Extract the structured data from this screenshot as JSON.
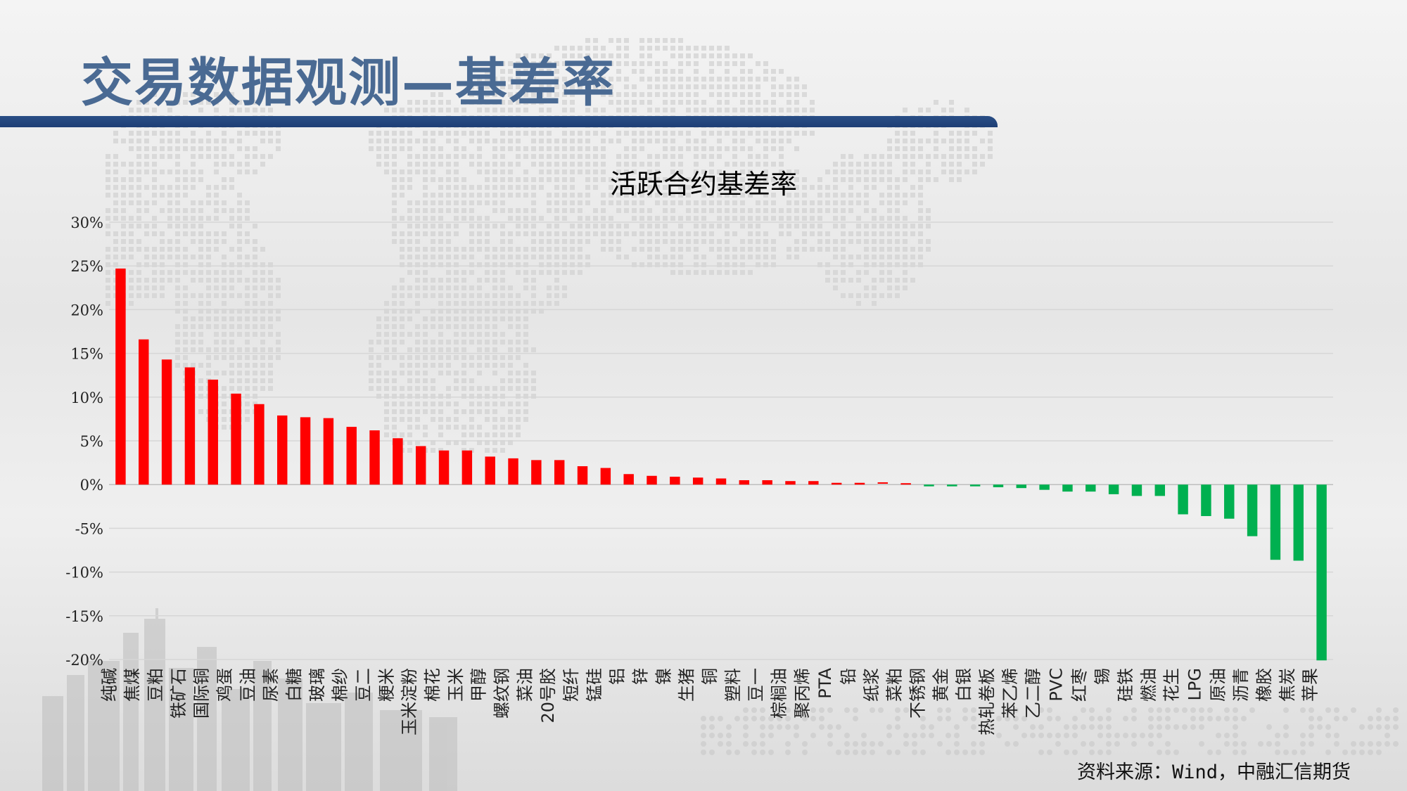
{
  "slide": {
    "title": "交易数据观测—基差率",
    "source": "资料来源：Wind，中融汇信期货"
  },
  "chart_data": {
    "type": "bar",
    "title": "活跃合约基差率",
    "xlabel": "",
    "ylabel": "",
    "ylim": [
      -20,
      30
    ],
    "yticks": [
      "30%",
      "25%",
      "20%",
      "15%",
      "10%",
      "5%",
      "0%",
      "-5%",
      "-10%",
      "-15%",
      "-20%"
    ],
    "grid": true,
    "positive_color": "#ff0000",
    "negative_color": "#00b050",
    "categories": [
      "纯碱",
      "焦煤",
      "豆粕",
      "铁矿石",
      "国际铜",
      "鸡蛋",
      "豆油",
      "尿素",
      "白糖",
      "玻璃",
      "棉纱",
      "豆二",
      "粳米",
      "玉米淀粉",
      "棉花",
      "玉米",
      "甲醇",
      "螺纹钢",
      "菜油",
      "20号胶",
      "短纤",
      "锰硅",
      "铝",
      "锌",
      "镍",
      "生猪",
      "铜",
      "塑料",
      "豆一",
      "棕榈油",
      "聚丙烯",
      "PTA",
      "铅",
      "纸浆",
      "菜粕",
      "不锈钢",
      "黄金",
      "白银",
      "热轧卷板",
      "苯乙烯",
      "乙二醇",
      "PVC",
      "红枣",
      "锡",
      "硅铁",
      "燃油",
      "花生",
      "LPG",
      "原油",
      "沥青",
      "橡胶",
      "焦炭",
      "苹果"
    ],
    "values": [
      24.7,
      16.6,
      14.3,
      13.4,
      12.0,
      10.4,
      9.2,
      7.9,
      7.7,
      7.6,
      6.6,
      6.2,
      5.3,
      4.4,
      3.9,
      3.9,
      3.2,
      3.0,
      2.8,
      2.8,
      2.1,
      1.9,
      1.2,
      1.0,
      0.9,
      0.8,
      0.7,
      0.5,
      0.5,
      0.4,
      0.4,
      0.2,
      0.2,
      0.1,
      0.0,
      -0.2,
      -0.2,
      -0.2,
      -0.3,
      -0.4,
      -0.6,
      -0.8,
      -0.8,
      -1.1,
      -1.3,
      -1.3,
      -3.4,
      -3.6,
      -3.9,
      -5.9,
      -8.6,
      -8.7,
      -20.1
    ]
  }
}
